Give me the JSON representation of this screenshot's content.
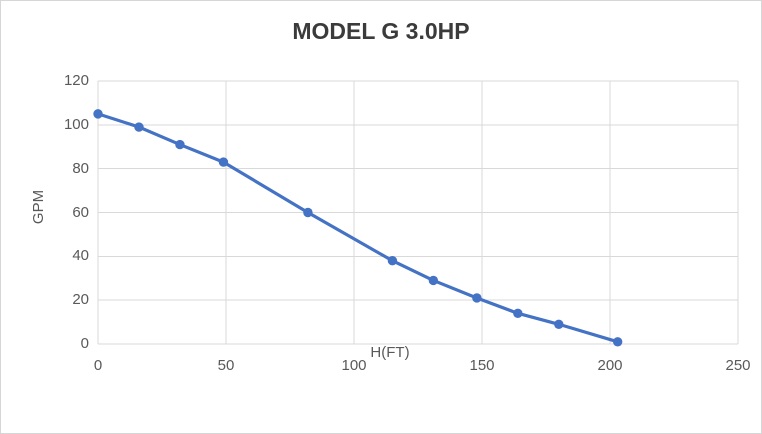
{
  "window": {
    "background": "#ffffff",
    "frame_border_color": "#d6d6d6"
  },
  "chart_data": {
    "type": "line",
    "title": "MODEL G 3.0HP",
    "xlabel": "H(FT)",
    "ylabel": "GPM",
    "x": [
      0,
      16,
      32,
      49,
      82,
      115,
      131,
      148,
      164,
      180,
      203
    ],
    "values": [
      105,
      99,
      91,
      83,
      60,
      38,
      29,
      21,
      14,
      9,
      1
    ],
    "xlim": [
      0,
      250
    ],
    "ylim": [
      0,
      120
    ],
    "xticks": [
      0,
      50,
      100,
      150,
      200,
      250
    ],
    "yticks": [
      0,
      20,
      40,
      60,
      80,
      100,
      120
    ],
    "grid": true,
    "legend": false,
    "marker": "circle",
    "colors": {
      "line": "#4472C4",
      "marker": "#4472C4",
      "gridline": "#D9D9D9",
      "tick_text": "#595959",
      "title_text": "#3B3B3B"
    }
  }
}
